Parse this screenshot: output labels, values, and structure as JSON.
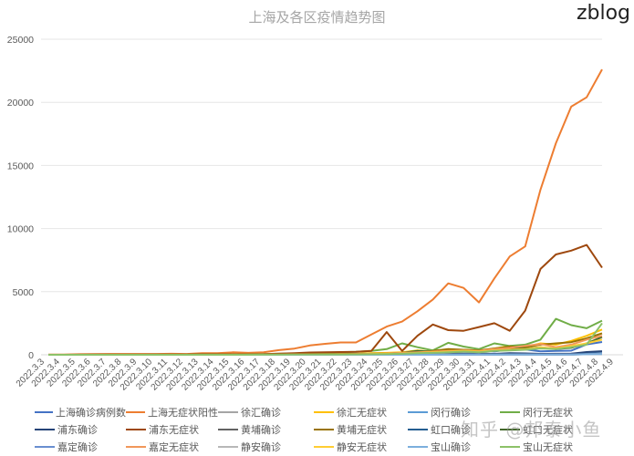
{
  "header": {
    "title": "上海及各区疫情趋势图",
    "brand": "zblog"
  },
  "watermark": "知乎 @邦泰小鱼",
  "chart_data": {
    "type": "line",
    "title": "上海及各区疫情趋势图",
    "xlabel": "",
    "ylabel": "",
    "ylim": [
      0,
      25000
    ],
    "yticks": [
      0,
      5000,
      10000,
      15000,
      20000,
      25000
    ],
    "grid": true,
    "legend_position": "bottom",
    "categories": [
      "2022.3.3",
      "2022.3.4",
      "2022.3.5",
      "2022.3.6",
      "2022.3.7",
      "2022.3.8",
      "2022.3.9",
      "2022.3.10",
      "2022.3.11",
      "2022.3.12",
      "2022.3.13",
      "2022.3.14",
      "2022.3.15",
      "2022.3.16",
      "2022.3.17",
      "2022.3.18",
      "2022.3.19",
      "2022.3.20",
      "2022.3.21",
      "2022.3.22",
      "2022.3.23",
      "2022.3.24",
      "2022.3.25",
      "2022.3.26",
      "2022.3.27",
      "2022.3.28",
      "2022.3.29",
      "2022.3.30",
      "2022.3.31",
      "2022.4.1",
      "2022.4.2",
      "2022.4.3",
      "2022.4.4",
      "2022.4.5",
      "2022.4.6",
      "2022.4.7",
      "2022.4.8",
      "2022.4.9"
    ],
    "series": [
      {
        "name": "上海确诊病例数",
        "color": "#4472c4",
        "values": [
          2,
          3,
          3,
          3,
          3,
          3,
          4,
          11,
          5,
          1,
          41,
          5,
          5,
          8,
          57,
          8,
          17,
          24,
          31,
          4,
          4,
          29,
          38,
          45,
          50,
          96,
          326,
          355,
          358,
          260,
          438,
          425,
          268,
          311,
          322,
          824,
          1015,
          null
        ]
      },
      {
        "name": "上海无症状阳性",
        "color": "#ed7d31",
        "values": [
          14,
          16,
          45,
          55,
          62,
          64,
          62,
          64,
          78,
          64,
          128,
          130,
          197,
          150,
          203,
          366,
          492,
          734,
          865,
          977,
          979,
          1609,
          2231,
          2631,
          3450,
          4381,
          5656,
          5298,
          4144,
          6051,
          7788,
          8581,
          13086,
          16766,
          19660,
          20398,
          22609,
          null
        ]
      },
      {
        "name": "徐汇确诊",
        "color": "#a5a5a5",
        "values": [
          0,
          0,
          0,
          0,
          0,
          0,
          0,
          1,
          0,
          0,
          2,
          0,
          0,
          1,
          3,
          1,
          2,
          3,
          2,
          1,
          0,
          2,
          3,
          4,
          5,
          8,
          20,
          25,
          30,
          20,
          30,
          28,
          20,
          25,
          22,
          60,
          80,
          null
        ]
      },
      {
        "name": "徐汇无症状",
        "color": "#ffc000",
        "values": [
          0,
          0,
          0,
          0,
          0,
          1,
          2,
          3,
          2,
          3,
          5,
          6,
          10,
          8,
          15,
          20,
          30,
          40,
          60,
          70,
          80,
          120,
          150,
          200,
          350,
          250,
          300,
          400,
          350,
          500,
          700,
          600,
          900,
          800,
          1100,
          1500,
          2000,
          null
        ]
      },
      {
        "name": "闵行确诊",
        "color": "#5b9bd5",
        "values": [
          0,
          0,
          0,
          0,
          0,
          0,
          1,
          0,
          0,
          0,
          3,
          0,
          0,
          1,
          4,
          1,
          2,
          2,
          3,
          0,
          0,
          2,
          3,
          4,
          5,
          10,
          30,
          40,
          45,
          30,
          50,
          55,
          30,
          40,
          45,
          100,
          120,
          null
        ]
      },
      {
        "name": "闵行无症状",
        "color": "#70ad47",
        "values": [
          0,
          0,
          0,
          1,
          1,
          2,
          3,
          5,
          8,
          10,
          15,
          20,
          30,
          40,
          60,
          80,
          100,
          120,
          150,
          200,
          230,
          300,
          450,
          900,
          600,
          350,
          950,
          650,
          450,
          900,
          700,
          800,
          1200,
          2850,
          2350,
          2100,
          2700,
          null
        ]
      },
      {
        "name": "浦东确诊",
        "color": "#264478",
        "values": [
          0,
          1,
          1,
          1,
          1,
          1,
          1,
          3,
          1,
          0,
          10,
          1,
          1,
          2,
          15,
          2,
          4,
          6,
          8,
          1,
          1,
          8,
          10,
          12,
          15,
          25,
          80,
          90,
          100,
          70,
          120,
          110,
          70,
          80,
          85,
          220,
          280,
          null
        ]
      },
      {
        "name": "浦东无症状",
        "color": "#9e480e",
        "values": [
          2,
          3,
          10,
          12,
          14,
          15,
          14,
          15,
          20,
          15,
          30,
          30,
          50,
          40,
          50,
          90,
          120,
          180,
          200,
          220,
          230,
          300,
          1800,
          300,
          1500,
          2400,
          1950,
          1900,
          2200,
          2500,
          1900,
          3500,
          6800,
          7950,
          8250,
          8700,
          6900,
          null
        ]
      },
      {
        "name": "黄埔确诊",
        "color": "#636363",
        "values": [
          0,
          0,
          0,
          0,
          0,
          0,
          0,
          1,
          0,
          0,
          2,
          0,
          0,
          1,
          3,
          1,
          1,
          2,
          2,
          0,
          0,
          2,
          2,
          3,
          4,
          6,
          15,
          20,
          22,
          15,
          25,
          25,
          15,
          18,
          20,
          50,
          60,
          null
        ]
      },
      {
        "name": "黄埔无症状",
        "color": "#997300",
        "values": [
          0,
          0,
          1,
          1,
          1,
          1,
          1,
          2,
          2,
          2,
          4,
          5,
          8,
          6,
          10,
          20,
          30,
          40,
          50,
          60,
          70,
          80,
          100,
          150,
          200,
          300,
          450,
          400,
          350,
          500,
          650,
          600,
          800,
          900,
          1000,
          1300,
          1700,
          null
        ]
      },
      {
        "name": "虹口确诊",
        "color": "#255e91",
        "values": [
          0,
          0,
          0,
          0,
          0,
          0,
          0,
          1,
          0,
          0,
          2,
          0,
          0,
          1,
          3,
          1,
          1,
          2,
          2,
          0,
          0,
          2,
          3,
          3,
          4,
          8,
          20,
          25,
          28,
          18,
          30,
          30,
          20,
          25,
          28,
          80,
          100,
          null
        ]
      },
      {
        "name": "虹口无症状",
        "color": "#43682b",
        "values": [
          0,
          0,
          0,
          0,
          1,
          1,
          1,
          2,
          2,
          2,
          4,
          5,
          6,
          6,
          10,
          15,
          20,
          25,
          35,
          40,
          45,
          60,
          80,
          150,
          300,
          250,
          200,
          250,
          300,
          350,
          450,
          500,
          600,
          450,
          550,
          900,
          1400,
          null
        ]
      },
      {
        "name": "嘉定确诊",
        "color": "#698ed0",
        "values": [
          0,
          0,
          0,
          0,
          0,
          0,
          0,
          1,
          0,
          0,
          2,
          0,
          0,
          1,
          3,
          1,
          1,
          2,
          2,
          0,
          0,
          2,
          3,
          3,
          4,
          6,
          15,
          18,
          20,
          15,
          25,
          25,
          18,
          20,
          25,
          60,
          80,
          null
        ]
      },
      {
        "name": "嘉定无症状",
        "color": "#f1975a",
        "values": [
          0,
          0,
          0,
          0,
          0,
          0,
          1,
          1,
          1,
          1,
          2,
          3,
          5,
          4,
          8,
          10,
          15,
          20,
          30,
          40,
          50,
          70,
          100,
          150,
          200,
          250,
          300,
          350,
          300,
          450,
          550,
          700,
          850,
          600,
          800,
          1200,
          1500,
          null
        ]
      },
      {
        "name": "静安确诊",
        "color": "#b7b7b7",
        "values": [
          0,
          0,
          0,
          0,
          0,
          0,
          0,
          0,
          0,
          0,
          1,
          0,
          0,
          0,
          2,
          0,
          1,
          1,
          1,
          0,
          0,
          1,
          2,
          2,
          3,
          5,
          12,
          15,
          16,
          12,
          18,
          18,
          12,
          15,
          15,
          40,
          50,
          null
        ]
      },
      {
        "name": "静安无症状",
        "color": "#ffcd33",
        "values": [
          0,
          0,
          0,
          0,
          0,
          0,
          0,
          1,
          1,
          1,
          2,
          3,
          4,
          4,
          6,
          10,
          15,
          20,
          25,
          30,
          40,
          50,
          70,
          100,
          150,
          200,
          250,
          300,
          250,
          350,
          400,
          450,
          600,
          500,
          700,
          900,
          1200,
          null
        ]
      },
      {
        "name": "宝山确诊",
        "color": "#7cafdd",
        "values": [
          0,
          0,
          0,
          0,
          0,
          0,
          0,
          0,
          0,
          0,
          1,
          0,
          0,
          0,
          2,
          0,
          1,
          1,
          1,
          0,
          0,
          1,
          2,
          2,
          3,
          5,
          10,
          12,
          14,
          10,
          16,
          16,
          10,
          12,
          14,
          40,
          55,
          null
        ]
      },
      {
        "name": "宝山无症状",
        "color": "#8cc168",
        "values": [
          0,
          0,
          0,
          0,
          0,
          0,
          0,
          1,
          1,
          1,
          2,
          2,
          3,
          3,
          5,
          8,
          12,
          15,
          20,
          25,
          30,
          40,
          60,
          80,
          120,
          150,
          200,
          250,
          200,
          300,
          350,
          400,
          500,
          450,
          600,
          800,
          2500,
          null
        ]
      }
    ]
  },
  "legend": [
    {
      "label": "上海确诊病例数",
      "color": "#4472c4"
    },
    {
      "label": "上海无症状阳性",
      "color": "#ed7d31"
    },
    {
      "label": "徐汇确诊",
      "color": "#a5a5a5"
    },
    {
      "label": "徐汇无症状",
      "color": "#ffc000"
    },
    {
      "label": "闵行确诊",
      "color": "#5b9bd5"
    },
    {
      "label": "闵行无症状",
      "color": "#70ad47"
    },
    {
      "label": "浦东确诊",
      "color": "#264478"
    },
    {
      "label": "浦东无症状",
      "color": "#9e480e"
    },
    {
      "label": "黄埔确诊",
      "color": "#636363"
    },
    {
      "label": "黄埔无症状",
      "color": "#997300"
    },
    {
      "label": "虹口确诊",
      "color": "#255e91"
    },
    {
      "label": "虹口无症状",
      "color": "#43682b"
    },
    {
      "label": "嘉定确诊",
      "color": "#698ed0"
    },
    {
      "label": "嘉定无症状",
      "color": "#f1975a"
    },
    {
      "label": "静安确诊",
      "color": "#b7b7b7"
    },
    {
      "label": "静安无症状",
      "color": "#ffcd33"
    },
    {
      "label": "宝山确诊",
      "color": "#7cafdd"
    },
    {
      "label": "宝山无症状",
      "color": "#8cc168"
    }
  ]
}
